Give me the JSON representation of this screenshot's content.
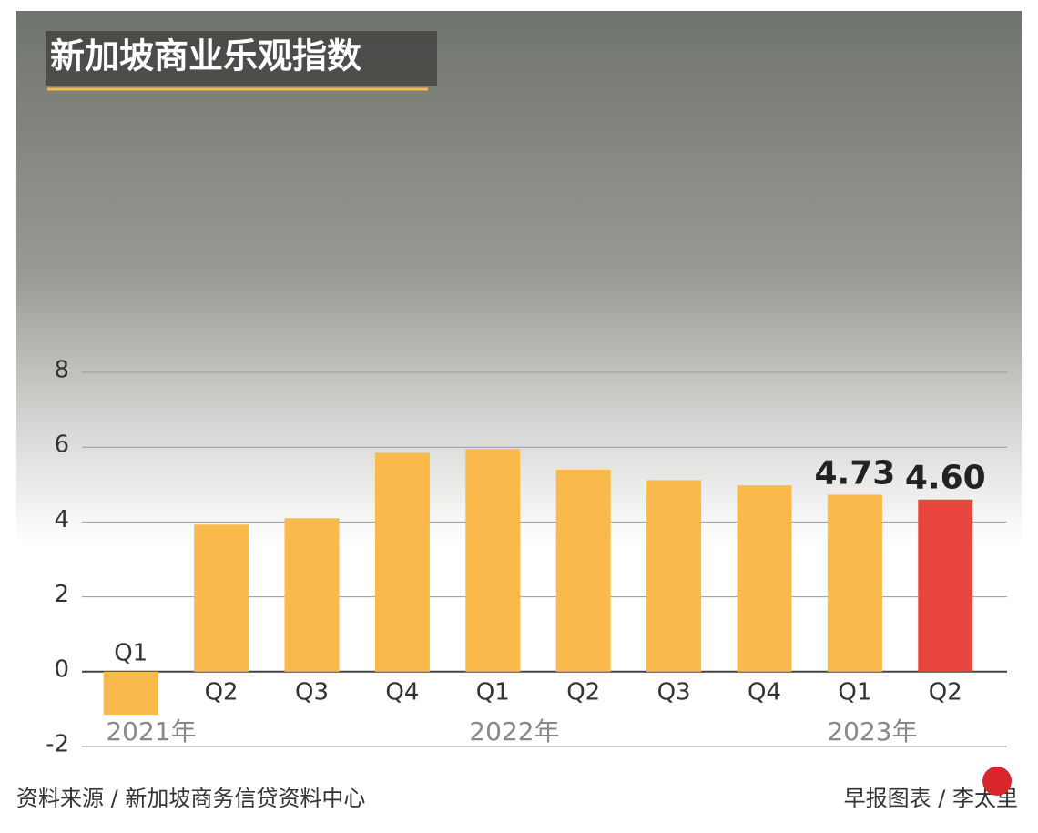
{
  "chart_data": {
    "type": "bar",
    "title": "新加坡商业乐观指数",
    "categories": [
      "Q1",
      "Q2",
      "Q3",
      "Q4",
      "Q1",
      "Q2",
      "Q3",
      "Q4",
      "Q1",
      "Q2"
    ],
    "year_labels": [
      "2021年",
      "2022年",
      "2023年"
    ],
    "values": [
      -1.15,
      3.93,
      4.1,
      5.85,
      5.95,
      5.4,
      5.12,
      4.98,
      4.73,
      4.6
    ],
    "value_labels": [
      null,
      null,
      null,
      null,
      null,
      null,
      null,
      null,
      "4.73",
      "4.60"
    ],
    "colors": [
      "#f9b94b",
      "#f9b94b",
      "#f9b94b",
      "#f9b94b",
      "#f9b94b",
      "#f9b94b",
      "#f9b94b",
      "#f9b94b",
      "#f9b94b",
      "#e8463e"
    ],
    "ylim": [
      -2,
      8
    ],
    "yticks": [
      -2,
      0,
      2,
      4,
      6,
      8
    ],
    "grid": true,
    "source": "资料来源 / 新加坡商务信贷资料中心",
    "credit": "早报图表 / 李太里"
  }
}
